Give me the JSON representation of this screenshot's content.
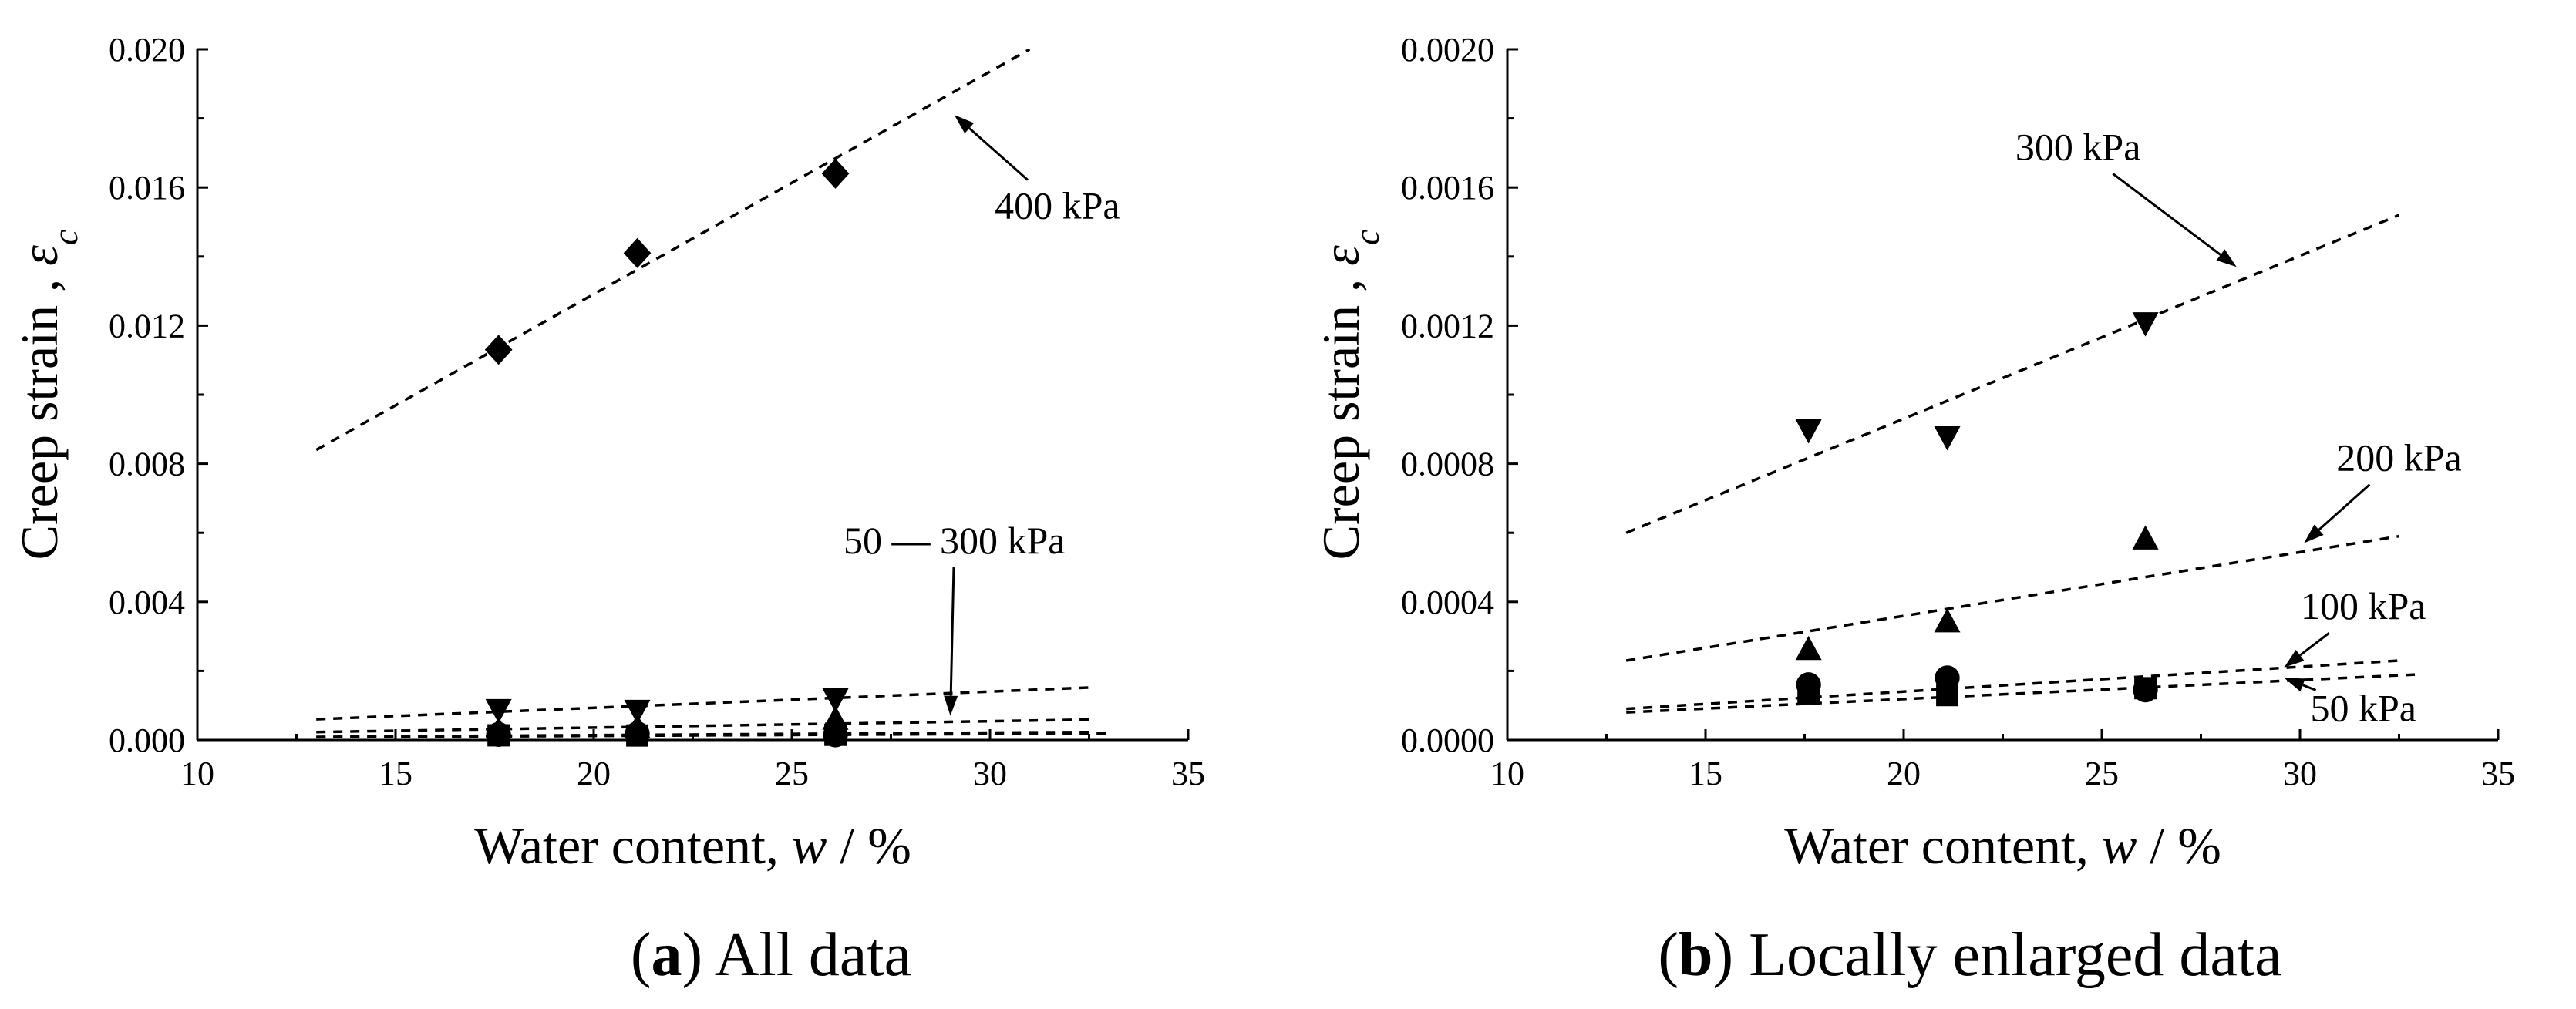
{
  "chart_data": [
    {
      "type": "scatter",
      "title": "",
      "xlabel": "Water content, w / %",
      "xlabel_parts": [
        "Water content, ",
        "w",
        " / %"
      ],
      "ylabel": "Creep strain , εc",
      "ylabel_parts": [
        "Creep strain , ",
        "ε",
        "c"
      ],
      "xlim": [
        10,
        35
      ],
      "ylim": [
        0,
        0.02
      ],
      "xticks": [
        10,
        15,
        20,
        25,
        30,
        35
      ],
      "xtick_labels": [
        "10",
        "15",
        "20",
        "25",
        "30",
        "35"
      ],
      "yticks": [
        0,
        0.004,
        0.008,
        0.012,
        0.016,
        0.02
      ],
      "ytick_labels": [
        "0.000",
        "0.004",
        "0.008",
        "0.012",
        "0.016",
        "0.020"
      ],
      "caption_parts": [
        "(",
        "a",
        ") All data"
      ],
      "series": [
        {
          "name": "50 kPa",
          "marker": "square",
          "x": [
            17.6,
            21.1,
            26.1
          ],
          "y": [
            0.000135,
            0.00013,
            0.00015
          ],
          "fit": {
            "x": [
              13,
              33
            ],
            "y": [
              8e-05,
              0.00019
            ]
          }
        },
        {
          "name": "100 kPa",
          "marker": "circle",
          "x": [
            17.6,
            21.1,
            26.1
          ],
          "y": [
            0.00016,
            0.00018,
            0.000145
          ],
          "fit": {
            "x": [
              13,
              32.5
            ],
            "y": [
              9e-05,
              0.00023
            ]
          }
        },
        {
          "name": "200 kPa",
          "marker": "triangle-up",
          "x": [
            17.6,
            21.1,
            26.1
          ],
          "y": [
            0.00026,
            0.00034,
            0.00058
          ],
          "fit": {
            "x": [
              13,
              32.5
            ],
            "y": [
              0.00023,
              0.00059
            ]
          }
        },
        {
          "name": "300 kPa",
          "marker": "triangle-down",
          "x": [
            17.6,
            21.1,
            26.1
          ],
          "y": [
            0.0009,
            0.00088,
            0.00121
          ],
          "fit": {
            "x": [
              13,
              32.5
            ],
            "y": [
              0.0006,
              0.00152
            ]
          }
        },
        {
          "name": "400 kPa",
          "marker": "diamond",
          "x": [
            17.6,
            21.1,
            26.1
          ],
          "y": [
            0.0113,
            0.0141,
            0.0164
          ],
          "fit": {
            "x": [
              13,
              31
            ],
            "y": [
              0.0084,
              0.02
            ]
          }
        }
      ],
      "annotations": [
        {
          "text": "400 kPa",
          "x": 31.7,
          "y": 0.0151,
          "arrow_to": [
            29.1,
            0.0181
          ]
        },
        {
          "text": "50 ― 300 kPa",
          "x": 29.1,
          "y": 0.0054,
          "arrow_to": [
            29.0,
            0.0007
          ]
        }
      ]
    },
    {
      "type": "scatter",
      "title": "",
      "xlabel": "Water content, w / %",
      "xlabel_parts": [
        "Water content, ",
        "w",
        " / %"
      ],
      "ylabel": "Creep strain , εc",
      "ylabel_parts": [
        "Creep strain , ",
        "ε",
        "c"
      ],
      "xlim": [
        10,
        35
      ],
      "ylim": [
        0,
        0.002
      ],
      "xticks": [
        10,
        15,
        20,
        25,
        30,
        35
      ],
      "xtick_labels": [
        "10",
        "15",
        "20",
        "25",
        "30",
        "35"
      ],
      "yticks": [
        0,
        0.0004,
        0.0008,
        0.0012,
        0.0016,
        0.002
      ],
      "ytick_labels": [
        "0.0000",
        "0.0004",
        "0.0008",
        "0.0012",
        "0.0016",
        "0.0020"
      ],
      "caption_parts": [
        "(",
        "b",
        ") Locally enlarged data"
      ],
      "series": [
        {
          "name": "50 kPa",
          "marker": "square",
          "x": [
            17.6,
            21.1,
            26.1
          ],
          "y": [
            0.000135,
            0.00013,
            0.00015
          ],
          "fit": {
            "x": [
              13,
              33
            ],
            "y": [
              8e-05,
              0.00019
            ]
          }
        },
        {
          "name": "100 kPa",
          "marker": "circle",
          "x": [
            17.6,
            21.1,
            26.1
          ],
          "y": [
            0.00016,
            0.00018,
            0.000145
          ],
          "fit": {
            "x": [
              13,
              32.5
            ],
            "y": [
              9e-05,
              0.00023
            ]
          }
        },
        {
          "name": "200 kPa",
          "marker": "triangle-up",
          "x": [
            17.6,
            21.1,
            26.1
          ],
          "y": [
            0.00026,
            0.00034,
            0.00058
          ],
          "fit": {
            "x": [
              13,
              32.5
            ],
            "y": [
              0.00023,
              0.00059
            ]
          }
        },
        {
          "name": "300 kPa",
          "marker": "triangle-down",
          "x": [
            17.6,
            21.1,
            26.1
          ],
          "y": [
            0.0009,
            0.00088,
            0.00121
          ],
          "fit": {
            "x": [
              13,
              32.5
            ],
            "y": [
              0.0006,
              0.00152
            ]
          }
        }
      ],
      "annotations": [
        {
          "text": "300 kPa",
          "x": 24.4,
          "y": 0.00168,
          "arrow_to": [
            28.4,
            0.00137
          ]
        },
        {
          "text": "200 kPa",
          "x": 32.5,
          "y": 0.00078,
          "arrow_to": [
            30.1,
            0.00057
          ]
        },
        {
          "text": "100 kPa",
          "x": 31.6,
          "y": 0.00035,
          "arrow_to": [
            29.6,
            0.00021
          ]
        },
        {
          "text": "50 kPa",
          "x": 31.6,
          "y": 5.5e-05,
          "arrow_to": [
            29.6,
            0.00018
          ]
        }
      ]
    }
  ]
}
